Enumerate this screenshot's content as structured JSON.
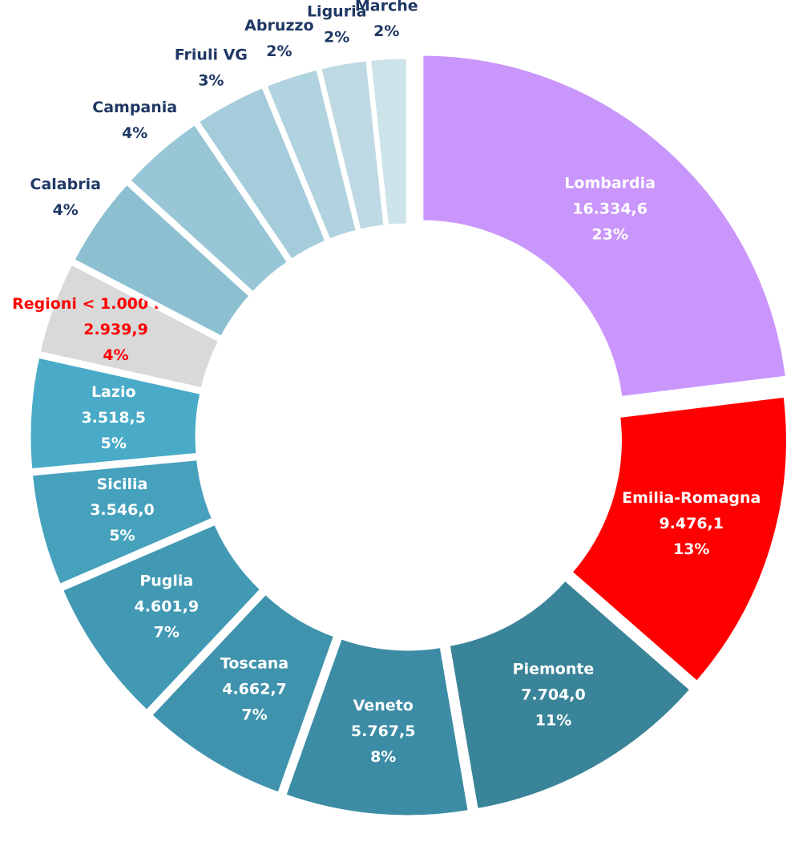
{
  "chart_data": {
    "type": "donut",
    "categories": [
      "Lombardia",
      "Emilia-Romagna",
      "Piemonte",
      "Veneto",
      "Toscana",
      "Puglia",
      "Sicilia",
      "Lazio",
      "Regioni < 1.000 M Sm3*",
      "Calabria",
      "Campania",
      "Friuli VG",
      "Abruzzo",
      "Liguria",
      "Marche"
    ],
    "values": [
      16334.6,
      9476.1,
      7704.0,
      5767.5,
      4662.7,
      4601.9,
      3546.0,
      3518.5,
      2939.9,
      2900,
      2700,
      2300,
      1700,
      1500,
      1200
    ],
    "value_labels": [
      "16.334,6",
      "9.476,1",
      "7.704,0",
      "5.767,5",
      "4.662,7",
      "4.601,9",
      "3.546,0",
      "3.518,5",
      "2.939,9",
      null,
      null,
      null,
      null,
      null,
      null
    ],
    "percent_labels": [
      "23%",
      "13%",
      "11%",
      "8%",
      "7%",
      "7%",
      "5%",
      "5%",
      "4%",
      "4%",
      "4%",
      "3%",
      "2%",
      "2%",
      "2%"
    ],
    "colors": [
      "#c996fb",
      "#ff0000",
      "#3a8499",
      "#3d8ca6",
      "#4093ad",
      "#4299b4",
      "#45a1bc",
      "#49abc7",
      "#d9d9d9",
      "#8cc0d1",
      "#99c6d6",
      "#a5ccda",
      "#b1d3df",
      "#bed9e3",
      "#cde3ea"
    ],
    "label_colors": [
      "#ffffff",
      "#ffffff",
      "#ffffff",
      "#ffffff",
      "#ffffff",
      "#ffffff",
      "#ffffff",
      "#ffffff",
      "#ff0000",
      "#1f3864",
      "#1f3864",
      "#1f3864",
      "#1f3864",
      "#1f3864",
      "#1f3864"
    ]
  }
}
